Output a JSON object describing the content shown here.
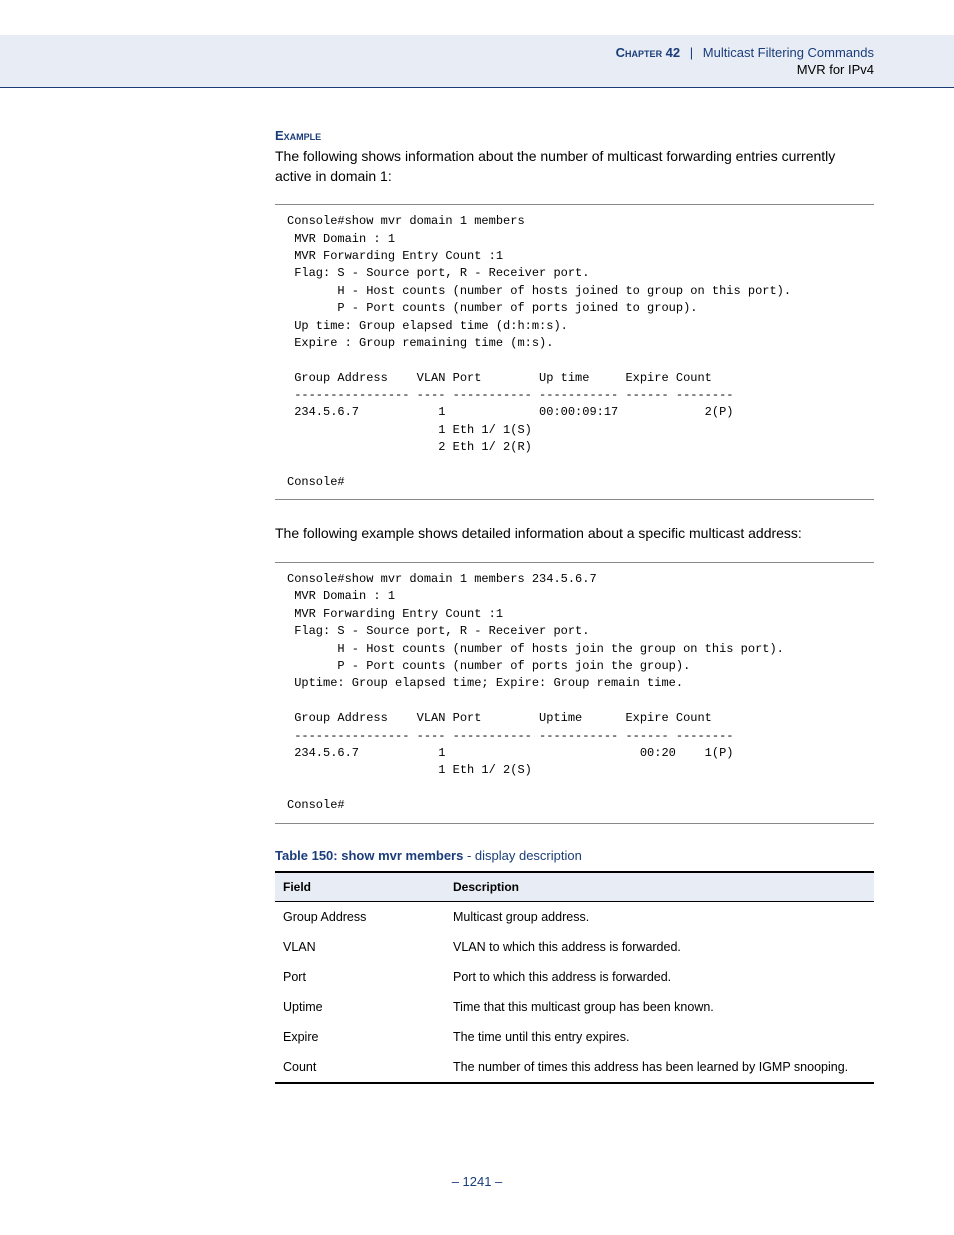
{
  "header": {
    "chapter_label": "Chapter 42",
    "separator": "|",
    "chapter_title": "Multicast Filtering Commands",
    "subheader": "MVR for IPv4"
  },
  "sections": {
    "example_label": "Example",
    "intro1": "The following shows information about the number of multicast forwarding entries currently active in domain 1:",
    "code1": "Console#show mvr domain 1 members\n MVR Domain : 1\n MVR Forwarding Entry Count :1\n Flag: S - Source port, R - Receiver port.\n       H - Host counts (number of hosts joined to group on this port).\n       P - Port counts (number of ports joined to group).\n Up time: Group elapsed time (d:h:m:s).\n Expire : Group remaining time (m:s).\n\n Group Address    VLAN Port        Up time     Expire Count\n ---------------- ---- ----------- ----------- ------ --------\n 234.5.6.7           1             00:00:09:17            2(P)\n                     1 Eth 1/ 1(S)\n                     2 Eth 1/ 2(R)\n\nConsole#",
    "intro2": "The following example shows detailed information about a specific multicast address:",
    "code2": "Console#show mvr domain 1 members 234.5.6.7\n MVR Domain : 1\n MVR Forwarding Entry Count :1\n Flag: S - Source port, R - Receiver port.\n       H - Host counts (number of hosts join the group on this port).\n       P - Port counts (number of ports join the group).\n Uptime: Group elapsed time; Expire: Group remain time.\n\n Group Address    VLAN Port        Uptime      Expire Count\n ---------------- ---- ----------- ----------- ------ --------\n 234.5.6.7           1                           00:20    1(P)\n                     1 Eth 1/ 2(S)\n\nConsole#"
  },
  "table": {
    "caption_bold": "Table 150: show mvr members",
    "caption_rest": " - display description",
    "headers": {
      "field": "Field",
      "description": "Description"
    },
    "rows": [
      {
        "field": "Group Address",
        "desc": "Multicast group address."
      },
      {
        "field": "VLAN",
        "desc": "VLAN to which this address is forwarded."
      },
      {
        "field": "Port",
        "desc": "Port to which this address is forwarded."
      },
      {
        "field": "Uptime",
        "desc": "Time that this multicast group has been known."
      },
      {
        "field": "Expire",
        "desc": "The time until this entry expires."
      },
      {
        "field": "Count",
        "desc": "The number of times this address has been learned by IGMP snooping."
      }
    ]
  },
  "footer": {
    "page": "–  1241  –"
  }
}
